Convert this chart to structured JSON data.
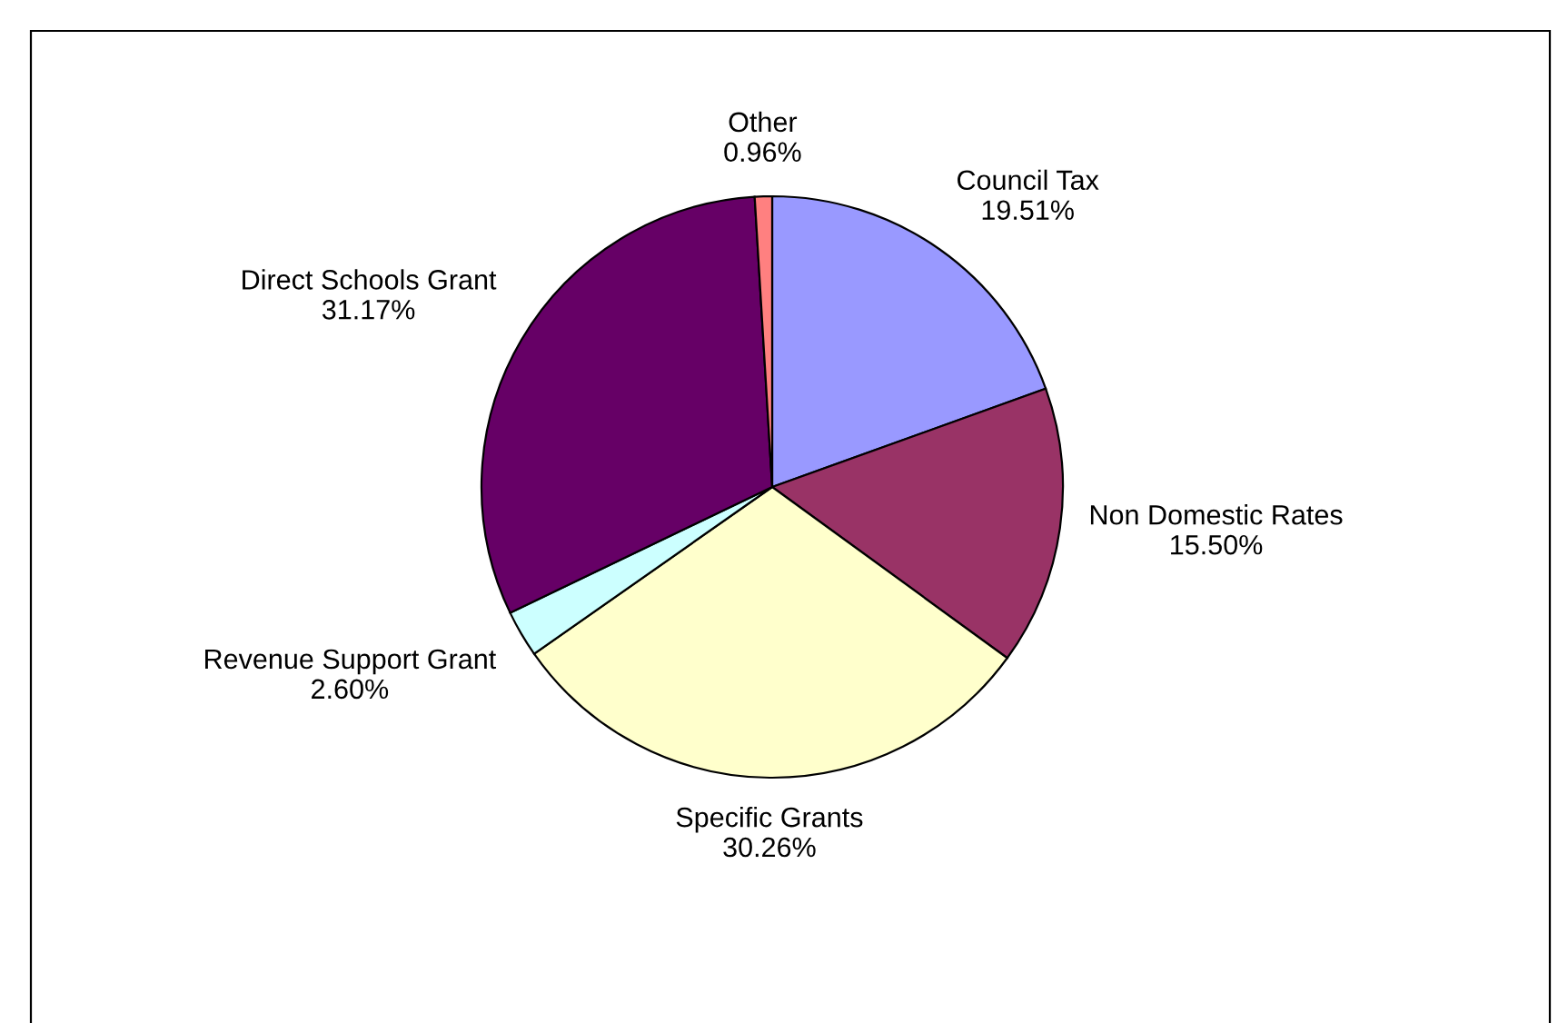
{
  "chart_data": {
    "type": "pie",
    "categories": [
      "Council Tax",
      "Non Domestic Rates",
      "Specific Grants",
      "Revenue Support Grant",
      "Direct Schools Grant",
      "Other"
    ],
    "values": [
      19.51,
      15.5,
      30.26,
      2.6,
      31.17,
      0.96
    ],
    "value_labels": [
      "19.51%",
      "15.50%",
      "30.26%",
      "2.60%",
      "31.17%",
      "0.96%"
    ],
    "colors": [
      "#9999ff",
      "#993366",
      "#ffffcc",
      "#ccffff",
      "#660066",
      "#ff8080"
    ],
    "legend": false
  }
}
